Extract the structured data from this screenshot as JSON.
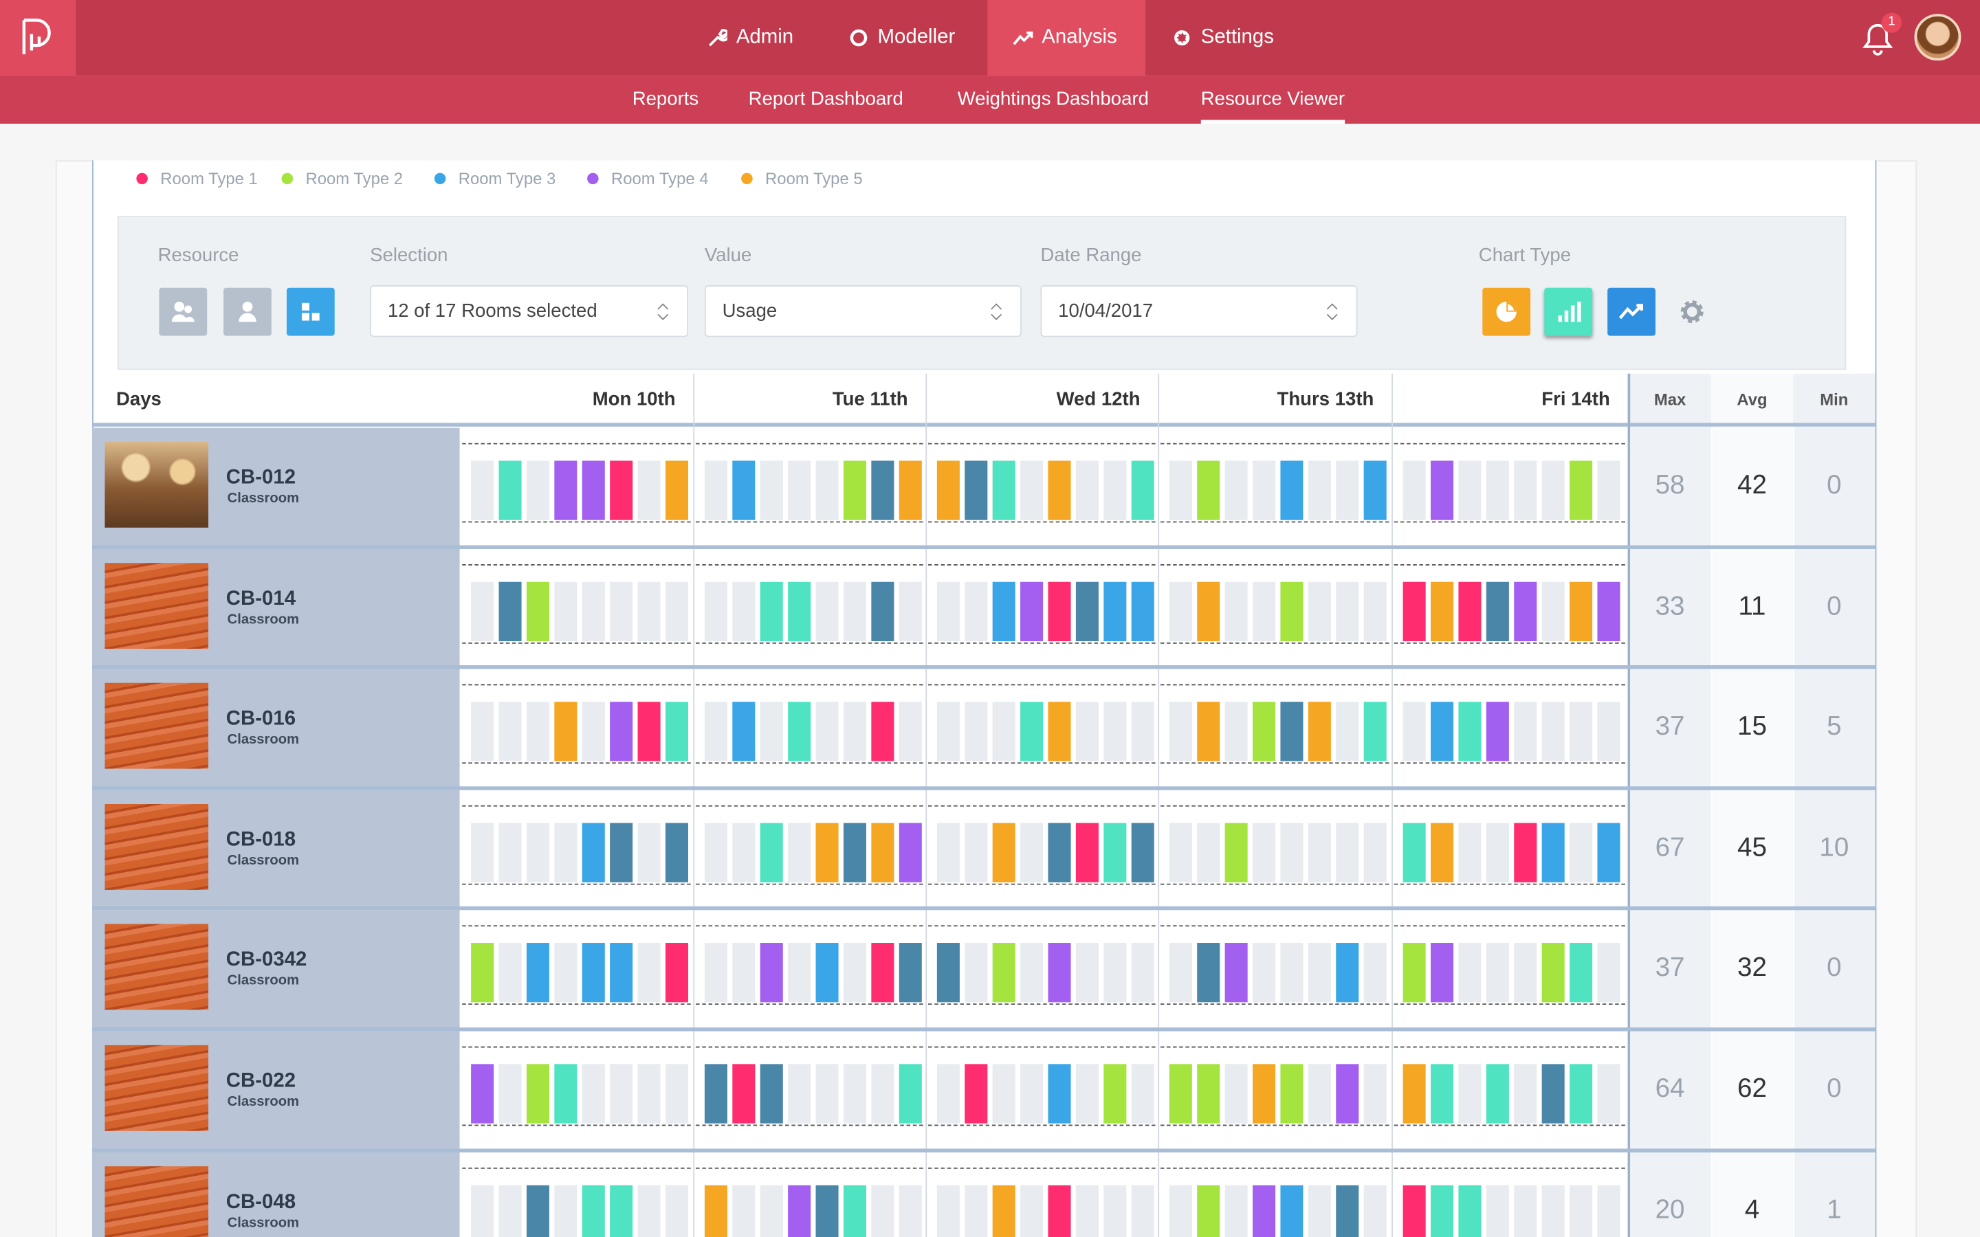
{
  "nav": {
    "items": [
      "Admin",
      "Modeller",
      "Analysis",
      "Settings"
    ],
    "active": 2
  },
  "notifications": 1,
  "subnav": {
    "items": [
      "Reports",
      "Report Dashboard",
      "Weightings Dashboard",
      "Resource Viewer"
    ],
    "active": 3
  },
  "legend": [
    {
      "label": "Room Type 1",
      "color": "#ff2d6f"
    },
    {
      "label": "Room Type 2",
      "color": "#a5e33f"
    },
    {
      "label": "Room Type 3",
      "color": "#3aa6e8"
    },
    {
      "label": "Room Type 4",
      "color": "#a35ff0"
    },
    {
      "label": "Room Type 5",
      "color": "#f5a623"
    }
  ],
  "filters": {
    "resource_label": "Resource",
    "selection_label": "Selection",
    "selection": "12 of 17 Rooms selected",
    "value_label": "Value",
    "value": "Usage",
    "date_label": "Date Range",
    "date": "10/04/2017",
    "chart_type_label": "Chart Type"
  },
  "table": {
    "days_label": "Days",
    "days": [
      "Mon 10th",
      "Tue 11th",
      "Wed 12th",
      "Thurs 13th",
      "Fri 14th"
    ],
    "stats": [
      "Max",
      "Avg",
      "Min"
    ],
    "rows": [
      {
        "name": "CB-012",
        "type": "Classroom",
        "max": 58,
        "avg": 42,
        "min": 0
      },
      {
        "name": "CB-014",
        "type": "Classroom",
        "max": 33,
        "avg": 11,
        "min": 0
      },
      {
        "name": "CB-016",
        "type": "Classroom",
        "max": 37,
        "avg": 15,
        "min": 5
      },
      {
        "name": "CB-018",
        "type": "Classroom",
        "max": 67,
        "avg": 45,
        "min": 10
      },
      {
        "name": "CB-0342",
        "type": "Classroom",
        "max": 37,
        "avg": 32,
        "min": 0
      },
      {
        "name": "CB-022",
        "type": "Classroom",
        "max": 64,
        "avg": 62,
        "min": 0
      },
      {
        "name": "CB-048",
        "type": "Classroom",
        "max": 20,
        "avg": 4,
        "min": 1
      }
    ]
  }
}
